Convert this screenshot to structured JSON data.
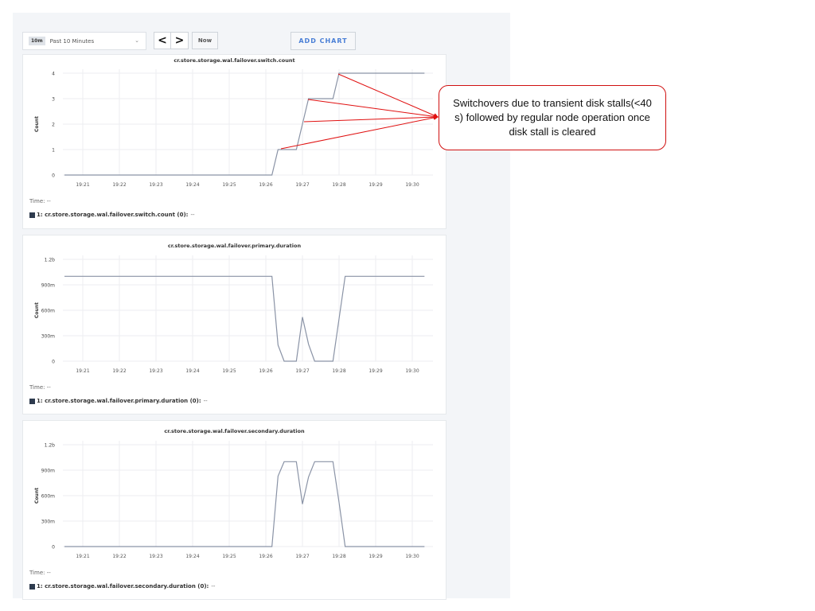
{
  "toolbar": {
    "range_badge": "10m",
    "range_label": "Past 10 Minutes",
    "prev_icon": "chevron-left-icon",
    "next_icon": "chevron-right-icon",
    "prev_label": "<",
    "next_label": ">",
    "now_label": "Now",
    "add_chart_label": "ADD CHART"
  },
  "annotation": {
    "text": "Switchovers due to transient disk stalls(<40 s) followed by regular node operation once disk stall is cleared",
    "color": "#d01010"
  },
  "chart_data": [
    {
      "type": "line",
      "title": "cr.store.storage.wal.failover.switch.count",
      "ylabel": "Count",
      "yticks": [
        "0",
        "1",
        "2",
        "3",
        "4"
      ],
      "ytick_values": [
        0,
        1,
        2,
        3,
        4
      ],
      "ylim": [
        0,
        4
      ],
      "xticks": [
        "19:21",
        "19:22",
        "19:23",
        "19:24",
        "19:25",
        "19:26",
        "19:27",
        "19:28",
        "19:29",
        "19:30"
      ],
      "grid": true,
      "line_color": "#8a93a6",
      "series": [
        {
          "name": "1: cr.store.storage.wal.failover.switch.count (0):",
          "value": "--",
          "x": [
            "19:20:30",
            "19:26:10",
            "19:26:20",
            "19:26:50",
            "19:27:10",
            "19:27:50",
            "19:28:00",
            "19:30:20"
          ],
          "y": [
            0,
            0,
            1,
            1,
            3,
            3,
            4,
            4
          ]
        }
      ],
      "time_label": "Time:",
      "time_value": "--"
    },
    {
      "type": "line",
      "title": "cr.store.storage.wal.failover.primary.duration",
      "ylabel": "Count",
      "yticks": [
        "0",
        "300m",
        "600m",
        "900m",
        "1.2b"
      ],
      "ytick_values": [
        0,
        0.3,
        0.6,
        0.9,
        1.2
      ],
      "ylim": [
        0,
        1.2
      ],
      "xticks": [
        "19:21",
        "19:22",
        "19:23",
        "19:24",
        "19:25",
        "19:26",
        "19:27",
        "19:28",
        "19:29",
        "19:30"
      ],
      "grid": true,
      "line_color": "#8a93a6",
      "series": [
        {
          "name": "1: cr.store.storage.wal.failover.primary.duration (0):",
          "value": "--",
          "x": [
            "19:20:30",
            "19:26:10",
            "19:26:20",
            "19:26:30",
            "19:26:50",
            "19:27:00",
            "19:27:10",
            "19:27:20",
            "19:27:50",
            "19:28:00",
            "19:28:10",
            "19:30:20"
          ],
          "y": [
            1,
            1,
            0.19,
            0,
            0,
            0.52,
            0.2,
            0,
            0,
            0.5,
            1,
            1
          ]
        }
      ],
      "time_label": "Time:",
      "time_value": "--"
    },
    {
      "type": "line",
      "title": "cr.store.storage.wal.failover.secondary.duration",
      "ylabel": "Count",
      "yticks": [
        "0",
        "300m",
        "600m",
        "900m",
        "1.2b"
      ],
      "ytick_values": [
        0,
        0.3,
        0.6,
        0.9,
        1.2
      ],
      "ylim": [
        0,
        1.2
      ],
      "xticks": [
        "19:21",
        "19:22",
        "19:23",
        "19:24",
        "19:25",
        "19:26",
        "19:27",
        "19:28",
        "19:29",
        "19:30"
      ],
      "grid": true,
      "line_color": "#8a93a6",
      "series": [
        {
          "name": "1: cr.store.storage.wal.failover.secondary.duration (0):",
          "value": "--",
          "x": [
            "19:20:30",
            "19:26:10",
            "19:26:20",
            "19:26:30",
            "19:26:50",
            "19:27:00",
            "19:27:10",
            "19:27:20",
            "19:27:50",
            "19:28:00",
            "19:28:10",
            "19:30:20"
          ],
          "y": [
            0,
            0,
            0.83,
            1,
            1,
            0.5,
            0.82,
            1,
            1,
            0.52,
            0,
            0
          ]
        }
      ],
      "time_label": "Time:",
      "time_value": "--"
    }
  ]
}
